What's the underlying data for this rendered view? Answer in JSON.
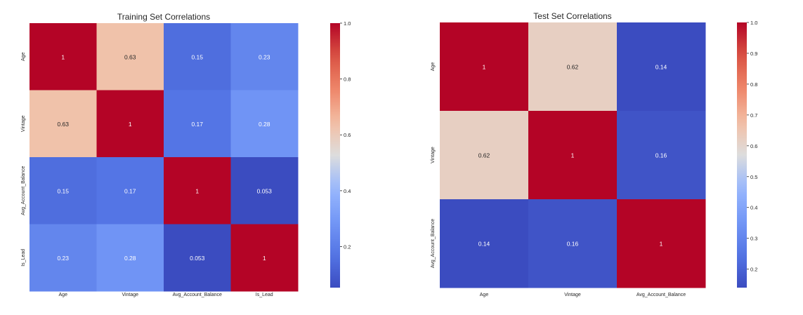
{
  "chart_data": [
    {
      "type": "heatmap",
      "title": "Training Set Correlations",
      "labels": [
        "Age",
        "Vintage",
        "Avg_Account_Balance",
        "Is_Lead"
      ],
      "matrix": [
        [
          1,
          0.63,
          0.15,
          0.23
        ],
        [
          0.63,
          1,
          0.17,
          0.28
        ],
        [
          0.15,
          0.17,
          1,
          0.053
        ],
        [
          0.23,
          0.28,
          0.053,
          1
        ]
      ],
      "cell_labels": [
        [
          "1",
          "0.63",
          "0.15",
          "0.23"
        ],
        [
          "0.63",
          "1",
          "0.17",
          "0.28"
        ],
        [
          "0.15",
          "0.17",
          "1",
          "0.053"
        ],
        [
          "0.23",
          "0.28",
          "0.053",
          "1"
        ]
      ],
      "colormap": "coolwarm",
      "vmin": 0.053,
      "vmax": 1.0,
      "colorbar_ticks": [
        "0.2",
        "0.4",
        "0.6",
        "0.8",
        "1.0"
      ]
    },
    {
      "type": "heatmap",
      "title": "Test Set Correlations",
      "labels": [
        "Age",
        "Vintage",
        "Avg_Account_Balance"
      ],
      "matrix": [
        [
          1,
          0.62,
          0.14
        ],
        [
          0.62,
          1,
          0.16
        ],
        [
          0.14,
          0.16,
          1
        ]
      ],
      "cell_labels": [
        [
          "1",
          "0.62",
          "0.14"
        ],
        [
          "0.62",
          "1",
          "0.16"
        ],
        [
          "0.14",
          "0.16",
          "1"
        ]
      ],
      "colormap": "coolwarm",
      "vmin": 0.14,
      "vmax": 1.0,
      "colorbar_ticks": [
        "0.2",
        "0.3",
        "0.4",
        "0.5",
        "0.6",
        "0.7",
        "0.8",
        "0.9",
        "1.0"
      ]
    }
  ]
}
